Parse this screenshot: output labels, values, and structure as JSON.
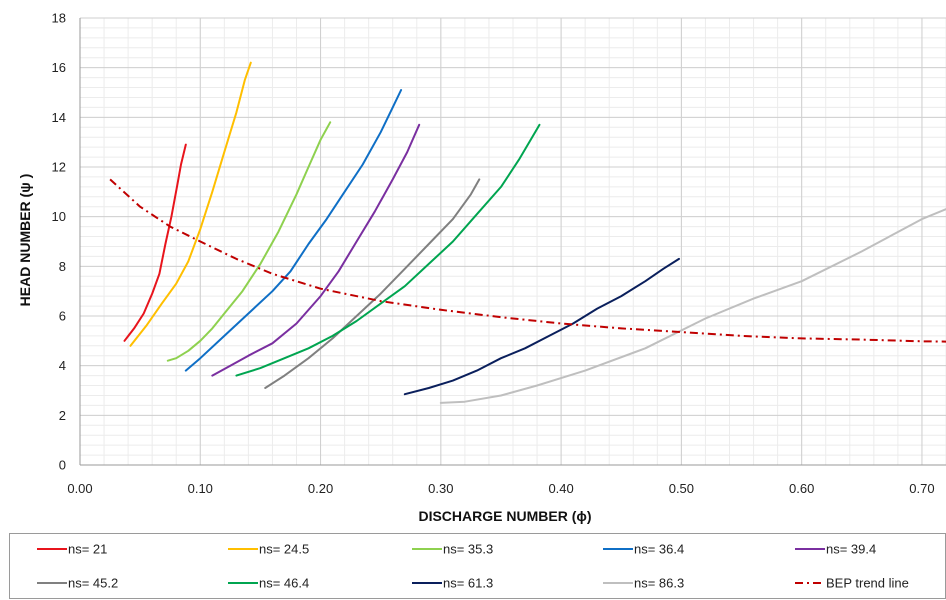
{
  "chart_data": {
    "type": "line",
    "xlabel": "DISCHARGE NUMBER (ϕ)",
    "ylabel": "HEAD NUMBER (ψ )",
    "xlim": [
      0,
      0.72
    ],
    "ylim": [
      0,
      18
    ],
    "x_ticks": [
      "0.00",
      "0.10",
      "0.20",
      "0.30",
      "0.40",
      "0.50",
      "0.60",
      "0.70"
    ],
    "y_ticks": [
      "0",
      "2",
      "4",
      "6",
      "8",
      "10",
      "12",
      "14",
      "16",
      "18"
    ],
    "grid": "major and minor",
    "legend_position": "bottom",
    "series": [
      {
        "name": "ns= 21",
        "color": "#e8141c",
        "dash": "solid",
        "x": [
          0.037,
          0.045,
          0.053,
          0.06,
          0.066,
          0.071,
          0.076,
          0.081,
          0.084,
          0.088
        ],
        "y": [
          5.0,
          5.5,
          6.1,
          6.9,
          7.7,
          8.9,
          10.0,
          11.3,
          12.1,
          12.9
        ]
      },
      {
        "name": "ns= 24.5",
        "color": "#ffbf00",
        "dash": "solid",
        "x": [
          0.042,
          0.055,
          0.068,
          0.08,
          0.09,
          0.1,
          0.11,
          0.12,
          0.13,
          0.137,
          0.142
        ],
        "y": [
          4.8,
          5.6,
          6.5,
          7.3,
          8.2,
          9.5,
          11.0,
          12.6,
          14.2,
          15.5,
          16.2
        ]
      },
      {
        "name": "ns= 35.3",
        "color": "#8ed14f",
        "dash": "solid",
        "x": [
          0.073,
          0.08,
          0.09,
          0.1,
          0.11,
          0.12,
          0.135,
          0.15,
          0.165,
          0.18,
          0.19,
          0.2,
          0.208
        ],
        "y": [
          4.2,
          4.3,
          4.6,
          5.0,
          5.5,
          6.1,
          7.0,
          8.1,
          9.4,
          10.9,
          12.0,
          13.1,
          13.8
        ]
      },
      {
        "name": "ns= 36.4",
        "color": "#0f6fc6",
        "dash": "solid",
        "x": [
          0.088,
          0.1,
          0.12,
          0.14,
          0.16,
          0.175,
          0.19,
          0.205,
          0.22,
          0.235,
          0.25,
          0.26,
          0.267
        ],
        "y": [
          3.8,
          4.3,
          5.2,
          6.1,
          7.0,
          7.8,
          8.9,
          9.9,
          11.0,
          12.1,
          13.4,
          14.4,
          15.1
        ]
      },
      {
        "name": "ns= 39.4",
        "color": "#7a2fa0",
        "dash": "solid",
        "x": [
          0.11,
          0.125,
          0.14,
          0.16,
          0.18,
          0.2,
          0.215,
          0.23,
          0.245,
          0.26,
          0.272,
          0.282
        ],
        "y": [
          3.6,
          4.0,
          4.4,
          4.9,
          5.7,
          6.8,
          7.8,
          9.0,
          10.2,
          11.5,
          12.6,
          13.7
        ]
      },
      {
        "name": "ns= 45.2",
        "color": "#808080",
        "dash": "solid",
        "x": [
          0.154,
          0.17,
          0.19,
          0.21,
          0.23,
          0.25,
          0.27,
          0.29,
          0.31,
          0.325,
          0.332
        ],
        "y": [
          3.1,
          3.6,
          4.3,
          5.1,
          6.0,
          6.9,
          7.9,
          8.9,
          9.9,
          10.9,
          11.5
        ]
      },
      {
        "name": "ns= 46.4",
        "color": "#00a550",
        "dash": "solid",
        "x": [
          0.13,
          0.15,
          0.17,
          0.19,
          0.21,
          0.23,
          0.25,
          0.27,
          0.29,
          0.31,
          0.33,
          0.35,
          0.365,
          0.382
        ],
        "y": [
          3.6,
          3.9,
          4.3,
          4.7,
          5.2,
          5.8,
          6.5,
          7.2,
          8.1,
          9.0,
          10.1,
          11.2,
          12.3,
          13.7
        ]
      },
      {
        "name": "ns= 61.3",
        "color": "#0a1f5c",
        "dash": "solid",
        "x": [
          0.27,
          0.29,
          0.31,
          0.33,
          0.35,
          0.37,
          0.39,
          0.41,
          0.43,
          0.45,
          0.47,
          0.485,
          0.498
        ],
        "y": [
          2.85,
          3.1,
          3.4,
          3.8,
          4.3,
          4.7,
          5.2,
          5.7,
          6.3,
          6.8,
          7.4,
          7.9,
          8.3
        ]
      },
      {
        "name": "ns= 86.3",
        "color": "#bfbfbf",
        "dash": "solid",
        "x": [
          0.3,
          0.32,
          0.35,
          0.38,
          0.42,
          0.47,
          0.52,
          0.56,
          0.6,
          0.65,
          0.7,
          0.72
        ],
        "y": [
          2.5,
          2.55,
          2.8,
          3.2,
          3.8,
          4.7,
          5.9,
          6.7,
          7.4,
          8.6,
          9.9,
          10.3
        ]
      },
      {
        "name": "BEP trend line",
        "color": "#c00000",
        "dash": "dashdot",
        "x": [
          0.025,
          0.05,
          0.075,
          0.1,
          0.13,
          0.16,
          0.2,
          0.25,
          0.3,
          0.35,
          0.4,
          0.45,
          0.5,
          0.55,
          0.6,
          0.65,
          0.7,
          0.72
        ],
        "y": [
          11.5,
          10.4,
          9.6,
          9.0,
          8.3,
          7.7,
          7.1,
          6.6,
          6.25,
          5.95,
          5.7,
          5.5,
          5.35,
          5.2,
          5.1,
          5.05,
          4.98,
          4.97
        ]
      }
    ]
  }
}
